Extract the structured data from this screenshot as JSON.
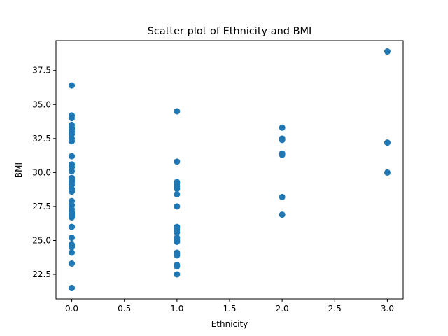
{
  "chart_data": {
    "type": "scatter",
    "title": "Scatter plot of Ethnicity and BMI",
    "xlabel": "Ethnicity",
    "ylabel": "BMI",
    "xlim": [
      -0.15,
      3.15
    ],
    "ylim": [
      20.7,
      39.7
    ],
    "xticks": [
      0.0,
      0.5,
      1.0,
      1.5,
      2.0,
      2.5,
      3.0
    ],
    "xtick_labels": [
      "0.0",
      "0.5",
      "1.0",
      "1.5",
      "2.0",
      "2.5",
      "3.0"
    ],
    "yticks": [
      22.5,
      25.0,
      27.5,
      30.0,
      32.5,
      35.0,
      37.5
    ],
    "ytick_labels": [
      "22.5",
      "25.0",
      "27.5",
      "30.0",
      "32.5",
      "35.0",
      "37.5"
    ],
    "grid": false,
    "marker_color": "#1f77b4",
    "series": [
      {
        "x": [
          0,
          0,
          0,
          0,
          0,
          0,
          0,
          0,
          0,
          0,
          0,
          0,
          0,
          0,
          0,
          0,
          0,
          0,
          0,
          0,
          0,
          0,
          0,
          0,
          0,
          0,
          0,
          0,
          0,
          0,
          0,
          0,
          0,
          0,
          0,
          0,
          0,
          0,
          1,
          1,
          1,
          1,
          1,
          1,
          1,
          1,
          1,
          1,
          1,
          1,
          1,
          1,
          1,
          1,
          1,
          1,
          1,
          1,
          2,
          2,
          2,
          2,
          2,
          2,
          2,
          3,
          3,
          3
        ],
        "y": [
          36.4,
          34.2,
          34.0,
          33.5,
          33.3,
          33.0,
          32.8,
          32.5,
          32.3,
          31.2,
          30.6,
          30.4,
          30.1,
          29.6,
          29.4,
          29.3,
          29.1,
          28.8,
          28.6,
          27.9,
          27.6,
          27.3,
          27.1,
          26.9,
          26.7,
          26.0,
          25.2,
          24.7,
          24.5,
          24.1,
          23.3,
          21.5,
          21.5,
          24.6,
          26.8,
          27.0,
          29.5,
          33.2,
          34.5,
          30.8,
          29.3,
          29.0,
          28.8,
          28.4,
          27.5,
          26.0,
          25.8,
          25.6,
          25.2,
          24.9,
          24.1,
          23.9,
          23.2,
          23.1,
          22.5,
          24.0,
          25.0,
          29.2,
          33.3,
          32.5,
          31.4,
          31.3,
          28.2,
          26.9,
          32.4,
          38.9,
          32.2,
          30.0
        ]
      }
    ]
  }
}
